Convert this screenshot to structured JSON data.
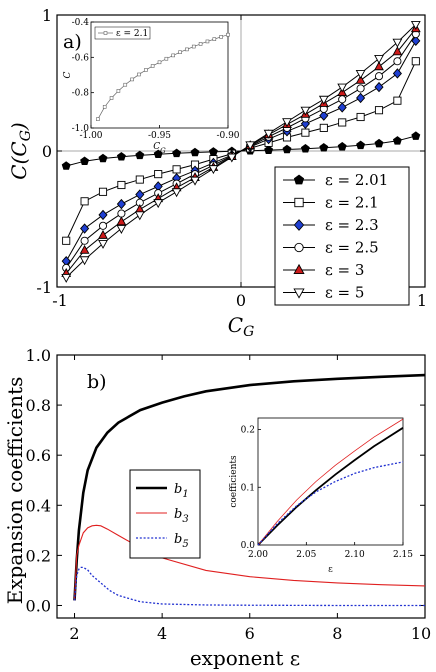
{
  "chart_data": [
    {
      "type": "line",
      "panel": "a)",
      "xlabel": "C",
      "xlabel_sub": "G",
      "ylabel": "C(C",
      "ylabel_sub": "G",
      "ylabel_close": ")",
      "xlim": [
        -1,
        1
      ],
      "ylim": [
        -1,
        1
      ],
      "x_ticks": [
        "-1",
        "0",
        "1"
      ],
      "y_ticks": [
        "-1",
        "0",
        "1"
      ],
      "legend_position": "lower-right",
      "series": [
        {
          "name": "ε = 2.01",
          "marker": "filled-pentagon",
          "color": "#000000",
          "fill": "#000000",
          "x": [
            -0.95,
            -0.85,
            -0.75,
            -0.65,
            -0.55,
            -0.45,
            -0.35,
            -0.25,
            -0.15,
            -0.05,
            0.05,
            0.15,
            0.25,
            0.35,
            0.45,
            0.55,
            0.65,
            0.75,
            0.85,
            0.95
          ],
          "y": [
            -0.11,
            -0.075,
            -0.055,
            -0.042,
            -0.032,
            -0.024,
            -0.017,
            -0.011,
            -0.006,
            -0.002,
            0.002,
            0.006,
            0.011,
            0.017,
            0.024,
            0.032,
            0.042,
            0.055,
            0.075,
            0.11
          ]
        },
        {
          "name": "ε = 2.1",
          "marker": "open-square",
          "color": "#000000",
          "fill": "#ffffff",
          "x": [
            -0.95,
            -0.85,
            -0.75,
            -0.65,
            -0.55,
            -0.45,
            -0.35,
            -0.25,
            -0.15,
            -0.05,
            0.05,
            0.15,
            0.25,
            0.35,
            0.45,
            0.55,
            0.65,
            0.75,
            0.85,
            0.95
          ],
          "y": [
            -0.66,
            -0.37,
            -0.3,
            -0.25,
            -0.21,
            -0.17,
            -0.135,
            -0.1,
            -0.06,
            -0.02,
            0.02,
            0.06,
            0.1,
            0.135,
            0.17,
            0.21,
            0.25,
            0.3,
            0.37,
            0.66
          ]
        },
        {
          "name": "ε = 2.3",
          "marker": "filled-diamond",
          "color": "#000000",
          "fill": "#1f3fd1",
          "x": [
            -0.95,
            -0.85,
            -0.75,
            -0.65,
            -0.55,
            -0.45,
            -0.35,
            -0.25,
            -0.15,
            -0.05,
            0.05,
            0.15,
            0.25,
            0.35,
            0.45,
            0.55,
            0.65,
            0.75,
            0.85,
            0.95
          ],
          "y": [
            -0.81,
            -0.57,
            -0.47,
            -0.39,
            -0.32,
            -0.26,
            -0.2,
            -0.145,
            -0.088,
            -0.03,
            0.03,
            0.088,
            0.145,
            0.2,
            0.26,
            0.32,
            0.39,
            0.47,
            0.57,
            0.81
          ]
        },
        {
          "name": "ε = 2.5",
          "marker": "open-circle",
          "color": "#000000",
          "fill": "#ffffff",
          "x": [
            -0.95,
            -0.85,
            -0.75,
            -0.65,
            -0.55,
            -0.45,
            -0.35,
            -0.25,
            -0.15,
            -0.05,
            0.05,
            0.15,
            0.25,
            0.35,
            0.45,
            0.55,
            0.65,
            0.75,
            0.85,
            0.95
          ],
          "y": [
            -0.86,
            -0.66,
            -0.55,
            -0.46,
            -0.38,
            -0.31,
            -0.24,
            -0.17,
            -0.105,
            -0.035,
            0.035,
            0.105,
            0.17,
            0.24,
            0.31,
            0.38,
            0.46,
            0.55,
            0.66,
            0.86
          ]
        },
        {
          "name": "ε = 3",
          "marker": "filled-triangle",
          "color": "#000000",
          "fill": "#cc1a1a",
          "x": [
            -0.95,
            -0.85,
            -0.75,
            -0.65,
            -0.55,
            -0.45,
            -0.35,
            -0.25,
            -0.15,
            -0.05,
            0.05,
            0.15,
            0.25,
            0.35,
            0.45,
            0.55,
            0.65,
            0.75,
            0.85,
            0.95
          ],
          "y": [
            -0.9,
            -0.73,
            -0.62,
            -0.52,
            -0.43,
            -0.35,
            -0.27,
            -0.195,
            -0.12,
            -0.04,
            0.04,
            0.12,
            0.195,
            0.27,
            0.35,
            0.43,
            0.52,
            0.62,
            0.73,
            0.9
          ]
        },
        {
          "name": "ε = 5",
          "marker": "open-triangle-down",
          "color": "#000000",
          "fill": "#ffffff",
          "x": [
            -0.95,
            -0.85,
            -0.75,
            -0.65,
            -0.55,
            -0.45,
            -0.35,
            -0.25,
            -0.15,
            -0.05,
            0.05,
            0.15,
            0.25,
            0.35,
            0.45,
            0.55,
            0.65,
            0.75,
            0.85,
            0.95
          ],
          "y": [
            -0.93,
            -0.8,
            -0.68,
            -0.57,
            -0.47,
            -0.38,
            -0.3,
            -0.215,
            -0.13,
            -0.045,
            0.045,
            0.13,
            0.215,
            0.3,
            0.38,
            0.47,
            0.57,
            0.68,
            0.8,
            0.93
          ]
        }
      ],
      "inset": {
        "xlabel": "C",
        "xlabel_sub": "G",
        "ylabel": "C",
        "xlim": [
          -1.0,
          -0.9
        ],
        "ylim": [
          -1.0,
          -0.4
        ],
        "x_ticks": [
          "-1.00",
          "-0.95",
          "-0.90"
        ],
        "y_ticks": [
          "-0.4",
          "-0.6",
          "-0.8",
          "-1.0"
        ],
        "legend": "ε = 2.1",
        "series": {
          "x": [
            -0.995,
            -0.99,
            -0.985,
            -0.98,
            -0.975,
            -0.97,
            -0.965,
            -0.96,
            -0.955,
            -0.95,
            -0.945,
            -0.94,
            -0.935,
            -0.93,
            -0.925,
            -0.92,
            -0.915,
            -0.91,
            -0.905,
            -0.9
          ],
          "y": [
            -0.95,
            -0.88,
            -0.83,
            -0.79,
            -0.755,
            -0.725,
            -0.697,
            -0.672,
            -0.649,
            -0.628,
            -0.608,
            -0.589,
            -0.571,
            -0.555,
            -0.539,
            -0.524,
            -0.51,
            -0.497,
            -0.484,
            -0.472
          ]
        }
      }
    },
    {
      "type": "line",
      "panel": "b)",
      "xlabel": "exponent ε",
      "ylabel": "Expansion coefficients",
      "xlim": [
        1.6,
        10
      ],
      "ylim": [
        -0.05,
        1.0
      ],
      "x_ticks": [
        "2",
        "4",
        "6",
        "8",
        "10"
      ],
      "y_ticks": [
        "0.0",
        "0.2",
        "0.4",
        "0.6",
        "0.8",
        "1.0"
      ],
      "legend_position": "center-left",
      "series": [
        {
          "name": "b",
          "name_sub": "1",
          "color": "#000000",
          "style": "solid-thick",
          "x": [
            2.0,
            2.05,
            2.1,
            2.2,
            2.3,
            2.5,
            2.75,
            3.0,
            3.5,
            4.0,
            4.5,
            5.0,
            6.0,
            7.0,
            8.0,
            9.0,
            10.0
          ],
          "y": [
            0.02,
            0.18,
            0.3,
            0.45,
            0.54,
            0.63,
            0.69,
            0.73,
            0.78,
            0.81,
            0.835,
            0.855,
            0.88,
            0.895,
            0.905,
            0.913,
            0.92
          ]
        },
        {
          "name": "b",
          "name_sub": "3",
          "color": "#e02020",
          "style": "solid",
          "x": [
            2.0,
            2.05,
            2.1,
            2.2,
            2.3,
            2.4,
            2.5,
            2.6,
            2.75,
            3.0,
            3.5,
            4.0,
            5.0,
            6.0,
            7.0,
            8.0,
            9.0,
            10.0
          ],
          "y": [
            0.02,
            0.2,
            0.24,
            0.29,
            0.31,
            0.318,
            0.32,
            0.318,
            0.305,
            0.28,
            0.23,
            0.19,
            0.14,
            0.115,
            0.1,
            0.09,
            0.083,
            0.078
          ]
        },
        {
          "name": "b",
          "name_sub": "5",
          "color": "#2030d0",
          "style": "dotted",
          "x": [
            2.0,
            2.05,
            2.1,
            2.15,
            2.2,
            2.3,
            2.4,
            2.6,
            2.8,
            3.0,
            3.5,
            4.0,
            5.0,
            6.0,
            8.0,
            10.0
          ],
          "y": [
            0.02,
            0.12,
            0.145,
            0.152,
            0.152,
            0.142,
            0.12,
            0.09,
            0.06,
            0.04,
            0.015,
            0.006,
            0.002,
            0.001,
            0.0,
            0.0
          ]
        }
      ],
      "inset": {
        "xlabel": "ε",
        "ylabel": "coefficients",
        "xlim": [
          2.0,
          2.15
        ],
        "ylim": [
          0.0,
          0.22
        ],
        "x_ticks": [
          "2.00",
          "2.05",
          "2.10",
          "2.15"
        ],
        "y_ticks": [
          "0.0",
          "0.1",
          "0.2"
        ],
        "series": [
          {
            "color": "#000000",
            "style": "solid-thick",
            "x": [
              2.0,
              2.02,
              2.04,
              2.06,
              2.08,
              2.1,
              2.12,
              2.15
            ],
            "y": [
              0.0,
              0.034,
              0.066,
              0.095,
              0.122,
              0.147,
              0.171,
              0.203
            ]
          },
          {
            "color": "#e02020",
            "style": "solid",
            "x": [
              2.0,
              2.02,
              2.04,
              2.06,
              2.08,
              2.1,
              2.12,
              2.15
            ],
            "y": [
              0.0,
              0.041,
              0.078,
              0.11,
              0.138,
              0.163,
              0.187,
              0.218
            ]
          },
          {
            "color": "#2030d0",
            "style": "dotted",
            "x": [
              2.0,
              2.02,
              2.04,
              2.06,
              2.08,
              2.1,
              2.12,
              2.15
            ],
            "y": [
              0.0,
              0.037,
              0.068,
              0.092,
              0.11,
              0.124,
              0.134,
              0.144
            ]
          }
        ]
      }
    }
  ]
}
